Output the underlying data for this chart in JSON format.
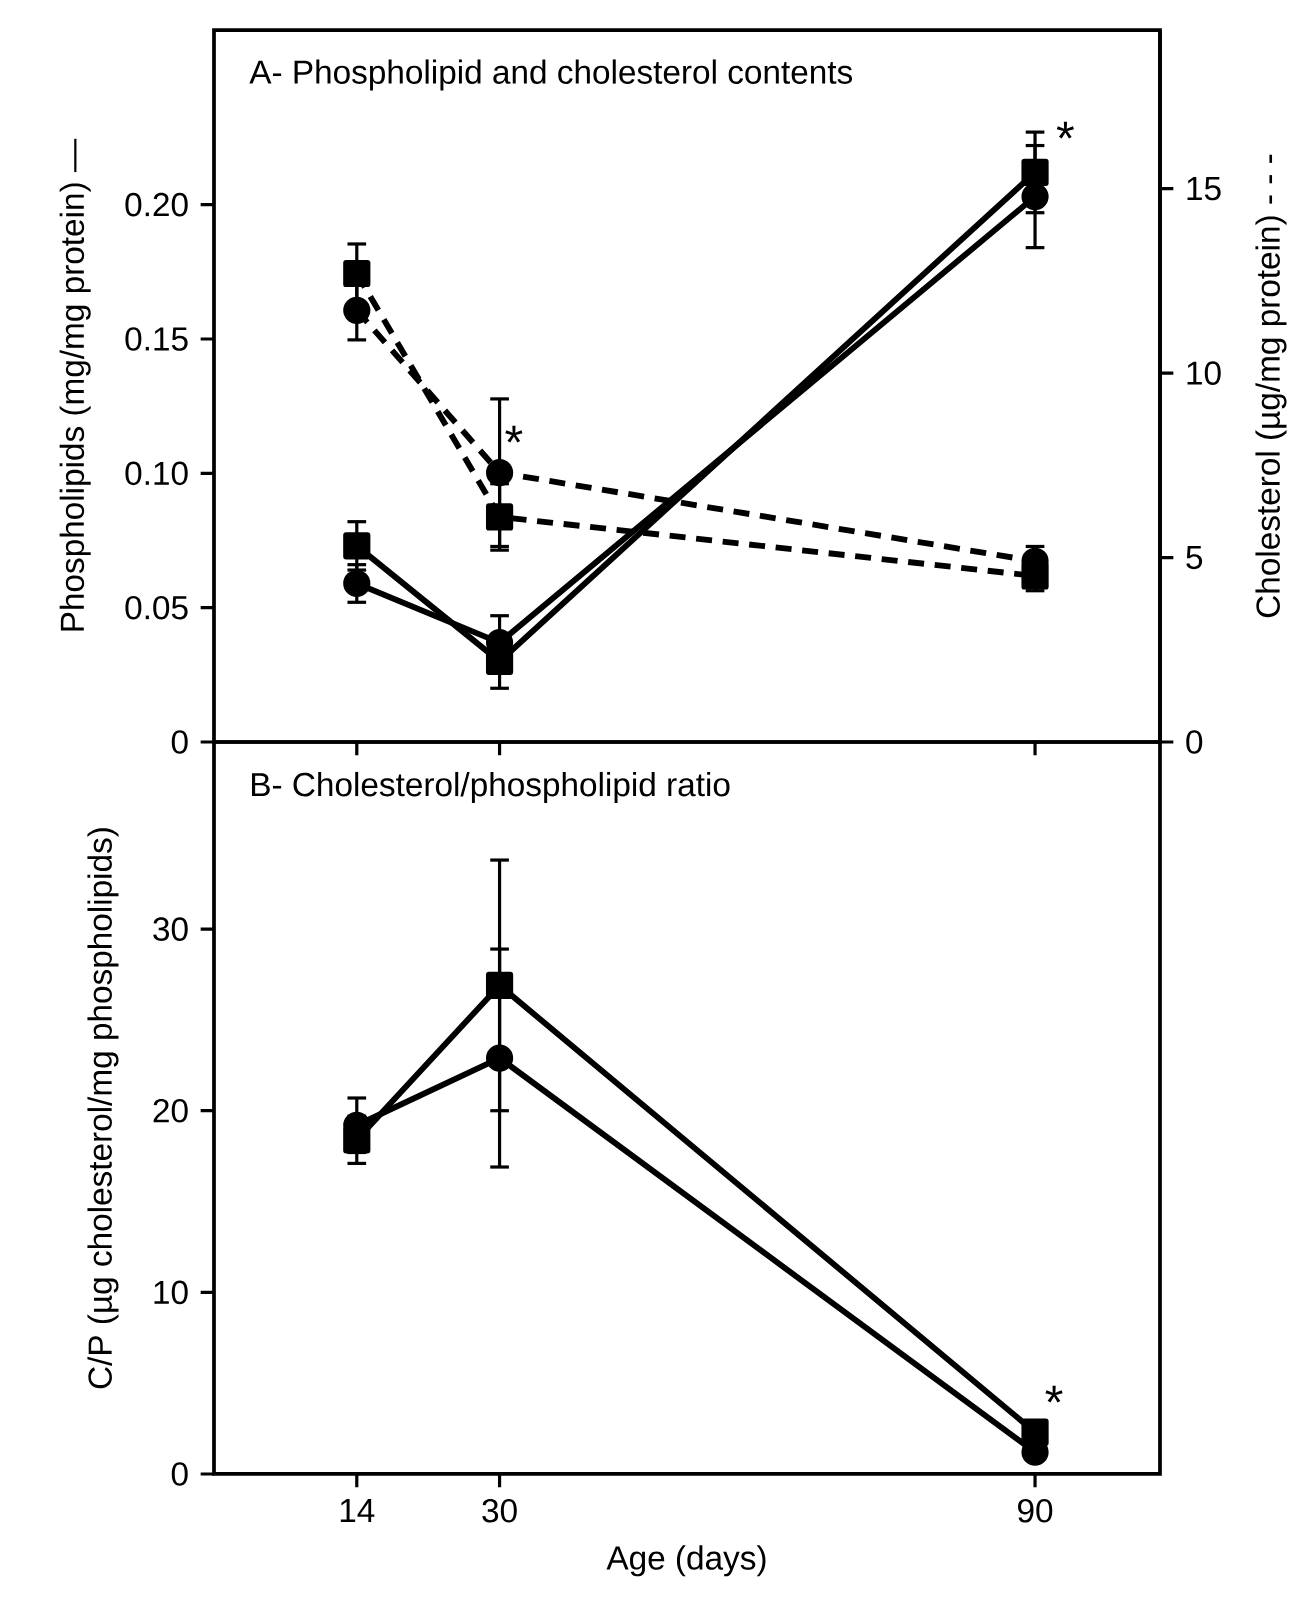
{
  "chart_data": [
    {
      "type": "line",
      "title": "A- Phospholipid and cholesterol contents",
      "ylabel": "Phospholipids (mg/mg protein) —",
      "y2label": "Cholesterol (µg/mg protein) - - -",
      "x": [
        14,
        30,
        90
      ],
      "xlim": [
        -2,
        104
      ],
      "xticks": [
        14,
        30,
        90
      ],
      "tick_labels": "y",
      "ylim": [
        0,
        0.265
      ],
      "yticks": [
        0,
        0.05,
        {
          "value": 0.1,
          "label": "0.10"
        },
        0.15,
        {
          "value": 0.2,
          "label": "0.20"
        }
      ],
      "y2lim": [
        0,
        19.3
      ],
      "y2ticks": [
        0,
        5,
        10,
        15
      ],
      "series": [
        {
          "color": "#000000",
          "marker": "circle",
          "line_style": "solid",
          "values": [
            0.059,
            0.037,
            0.203
          ],
          "errors": [
            0.007,
            0.01,
            0.019
          ]
        },
        {
          "color": "#000000",
          "marker": "square",
          "line_style": "solid",
          "values": [
            0.073,
            0.03,
            0.212
          ],
          "errors": [
            0.009,
            0.01,
            0.015
          ]
        },
        {
          "color": "#000000",
          "marker": "circle",
          "line_style": "dashed",
          "axis": "y2",
          "values": [
            11.7,
            7.3,
            4.9
          ],
          "errors": [
            0.8,
            2.0,
            0.4
          ]
        },
        {
          "color": "#000000",
          "marker": "square",
          "line_style": "dashed",
          "axis": "y2",
          "values": [
            12.7,
            6.1,
            4.5
          ],
          "errors": [
            0.8,
            0.9,
            0.4
          ]
        }
      ],
      "annotations": [
        "*",
        "*"
      ]
    },
    {
      "type": "line",
      "title": "B- Cholesterol/phospholipid  ratio",
      "xlabel": "Age (days)",
      "ylabel": "C/P (µg cholesterol/mg phospholipids)",
      "x": [
        14,
        30,
        90
      ],
      "xlim": [
        -2,
        104
      ],
      "xticks": [
        14,
        30,
        90
      ],
      "ylim": [
        0,
        40.3
      ],
      "yticks": [
        0,
        10,
        20,
        30
      ],
      "series": [
        {
          "color": "#000000",
          "marker": "circle",
          "line_style": "solid",
          "values": [
            19.2,
            22.9,
            1.2
          ],
          "errors": [
            1.5,
            6.0,
            null
          ]
        },
        {
          "color": "#000000",
          "marker": "square",
          "line_style": "solid",
          "values": [
            18.4,
            26.9,
            2.3
          ],
          "errors": [
            1.3,
            6.9,
            null
          ]
        }
      ],
      "annotations": [
        "*"
      ]
    }
  ]
}
